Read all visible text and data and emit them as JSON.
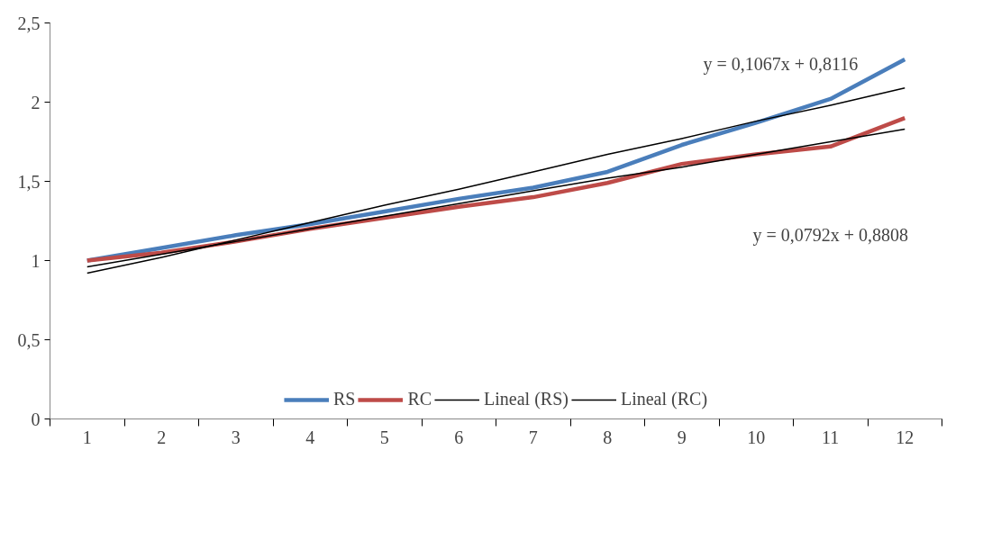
{
  "chart_data": {
    "type": "line",
    "x": [
      1,
      2,
      3,
      4,
      5,
      6,
      7,
      8,
      9,
      10,
      11,
      12
    ],
    "xlim": [
      0.5,
      12.5
    ],
    "xticks": [
      1,
      2,
      3,
      4,
      5,
      6,
      7,
      8,
      9,
      10,
      11,
      12
    ],
    "ylim": [
      0,
      2.5
    ],
    "yticks": [
      {
        "value": 0,
        "label": "0"
      },
      {
        "value": 0.5,
        "label": "0,5"
      },
      {
        "value": 1,
        "label": "1"
      },
      {
        "value": 1.5,
        "label": "1,5"
      },
      {
        "value": 2,
        "label": "2"
      },
      {
        "value": 2.5,
        "label": "2,5"
      }
    ],
    "grid": false,
    "legend": "bottom",
    "series": [
      {
        "name": "RS",
        "color": "#4a7ebb",
        "values": [
          1.0,
          1.08,
          1.16,
          1.23,
          1.31,
          1.39,
          1.46,
          1.56,
          1.73,
          1.87,
          2.02,
          2.27
        ]
      },
      {
        "name": "RC",
        "color": "#be4b48",
        "values": [
          1.0,
          1.05,
          1.12,
          1.2,
          1.27,
          1.34,
          1.4,
          1.49,
          1.61,
          1.67,
          1.72,
          1.9
        ]
      },
      {
        "name": "Lineal (RS)",
        "color": "#000000",
        "values": [
          0.92,
          1.02,
          1.13,
          1.24,
          1.35,
          1.45,
          1.56,
          1.67,
          1.77,
          1.88,
          1.98,
          2.09
        ]
      },
      {
        "name": "Lineal (RC)",
        "color": "#000000",
        "values": [
          0.96,
          1.04,
          1.12,
          1.2,
          1.28,
          1.36,
          1.44,
          1.52,
          1.59,
          1.67,
          1.75,
          1.83
        ]
      }
    ],
    "annotations": [
      "y = 0,1067x + 0,8116",
      "y = 0,0792x + 0,8808"
    ]
  }
}
